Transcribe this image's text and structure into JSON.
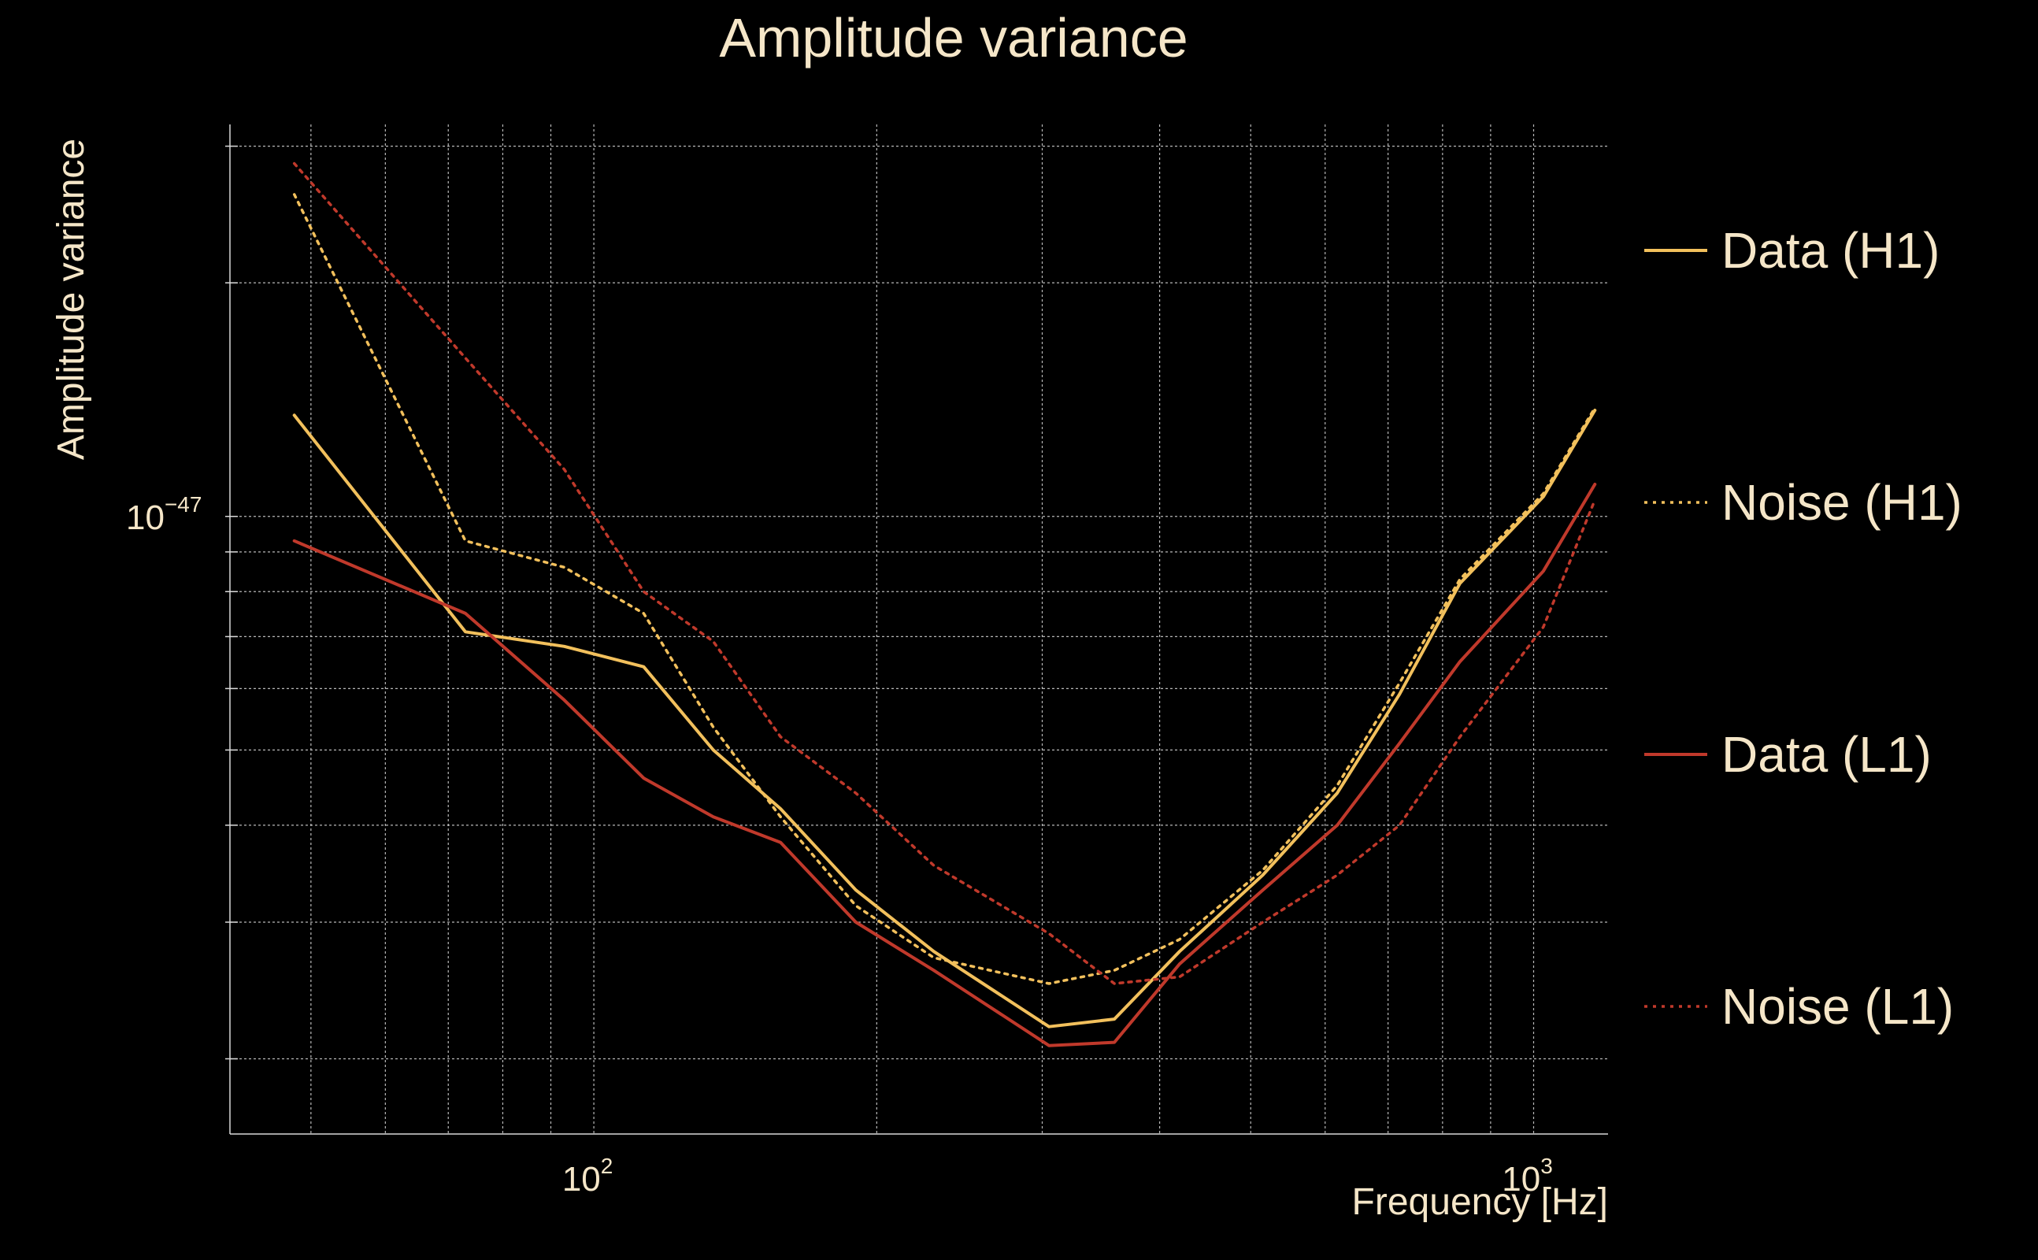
{
  "chart_data": {
    "type": "line",
    "title": "Amplitude variance",
    "xlabel": "Frequency [Hz]",
    "ylabel": "Amplitude variance",
    "x_scale": "log",
    "y_scale": "log",
    "xlim": [
      41,
      1200
    ],
    "ylim": [
      1.6e-48,
      3.2e-47
    ],
    "x_ticks": [
      {
        "value": 100,
        "base": "10",
        "exp": "2"
      },
      {
        "value": 1000,
        "base": "10",
        "exp": "3"
      }
    ],
    "y_ticks": [
      {
        "value": 1e-47,
        "base": "10",
        "exp": "−47"
      }
    ],
    "grid": true,
    "legend_position": "right",
    "series": [
      {
        "name": "Data (H1)",
        "color": "#f2c05c",
        "style": "solid",
        "x": [
          48,
          73,
          93,
          113,
          134,
          158,
          190,
          230,
          305,
          358,
          420,
          515,
          618,
          720,
          835,
          1024,
          1162
        ],
        "y": [
          1.35e-47,
          7.1e-48,
          6.8e-48,
          6.4e-48,
          5e-48,
          4.2e-48,
          3.3e-48,
          2.75e-48,
          2.2e-48,
          2.25e-48,
          2.75e-48,
          3.45e-48,
          4.4e-48,
          5.9e-48,
          8.2e-48,
          1.06e-47,
          1.37e-47
        ]
      },
      {
        "name": "Noise (H1)",
        "color": "#f2c05c",
        "style": "dotted",
        "x": [
          48,
          73,
          93,
          113,
          134,
          158,
          190,
          230,
          305,
          358,
          420,
          515,
          618,
          720,
          835,
          1024,
          1162
        ],
        "y": [
          2.6e-47,
          9.3e-48,
          8.6e-48,
          7.5e-48,
          5.35e-48,
          4.1e-48,
          3.15e-48,
          2.7e-48,
          2.5e-48,
          2.6e-48,
          2.85e-48,
          3.5e-48,
          4.5e-48,
          6.1e-48,
          8.3e-48,
          1.07e-47,
          1.38e-47
        ]
      },
      {
        "name": "Data (L1)",
        "color": "#c0392b",
        "style": "solid",
        "x": [
          48,
          73,
          93,
          113,
          134,
          158,
          190,
          230,
          305,
          358,
          420,
          515,
          618,
          720,
          835,
          1024,
          1162
        ],
        "y": [
          9.3e-48,
          7.5e-48,
          5.8e-48,
          4.6e-48,
          4.1e-48,
          3.8e-48,
          3e-48,
          2.6e-48,
          2.08e-48,
          2.1e-48,
          2.65e-48,
          3.3e-48,
          4e-48,
          5.1e-48,
          6.5e-48,
          8.5e-48,
          1.1e-47
        ]
      },
      {
        "name": "Noise (L1)",
        "color": "#c0392b",
        "style": "dotted",
        "x": [
          48,
          73,
          93,
          113,
          134,
          158,
          190,
          230,
          305,
          358,
          420,
          515,
          618,
          720,
          835,
          1024,
          1162
        ],
        "y": [
          2.85e-47,
          1.6e-47,
          1.15e-47,
          8e-48,
          6.9e-48,
          5.2e-48,
          4.4e-48,
          3.55e-48,
          2.9e-48,
          2.5e-48,
          2.55e-48,
          3e-48,
          3.45e-48,
          4e-48,
          5.2e-48,
          7.2e-48,
          1.05e-47
        ]
      }
    ]
  }
}
